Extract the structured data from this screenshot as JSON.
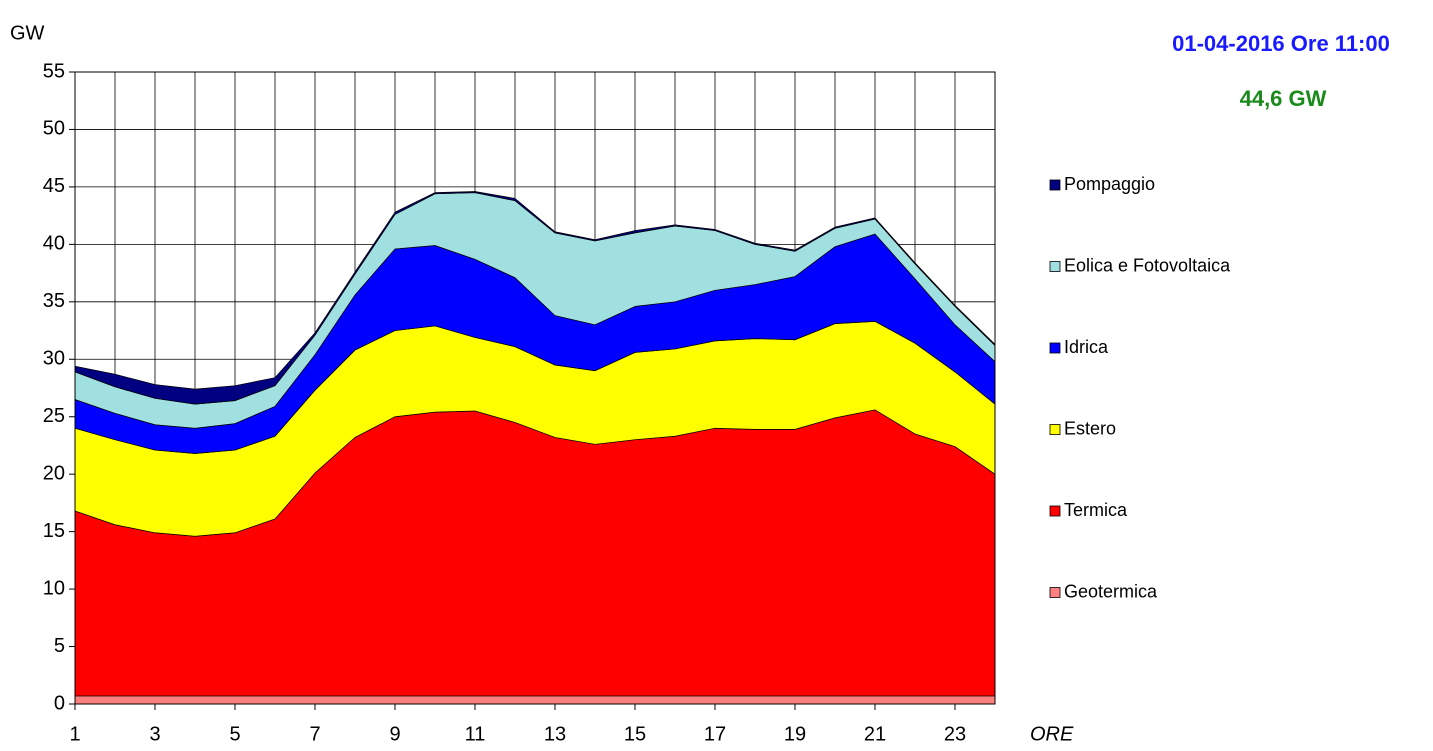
{
  "chart_data": {
    "type": "stacked_area",
    "title": "01-04-2016 Ore 11:00",
    "subtitle": "44,6 GW",
    "y_label": "GW",
    "x_label": "ORE",
    "x": [
      1,
      2,
      3,
      4,
      5,
      6,
      7,
      8,
      9,
      10,
      11,
      12,
      13,
      14,
      15,
      16,
      17,
      18,
      19,
      20,
      21,
      22,
      23,
      24
    ],
    "xlim": [
      1,
      24
    ],
    "xticks": [
      1,
      3,
      5,
      7,
      9,
      11,
      13,
      15,
      17,
      19,
      21,
      23
    ],
    "ylim": [
      0,
      55
    ],
    "yticks": [
      0,
      5,
      10,
      15,
      20,
      25,
      30,
      35,
      40,
      45,
      50,
      55
    ],
    "grid": true,
    "legend": "right",
    "series": [
      {
        "name": "Geotermica",
        "color": "#ff8080",
        "values": [
          0.7,
          0.7,
          0.7,
          0.7,
          0.7,
          0.7,
          0.7,
          0.7,
          0.7,
          0.7,
          0.7,
          0.7,
          0.7,
          0.7,
          0.7,
          0.7,
          0.7,
          0.7,
          0.7,
          0.7,
          0.7,
          0.7,
          0.7,
          0.7
        ]
      },
      {
        "name": "Termica",
        "color": "#ff0000",
        "values": [
          16.1,
          14.9,
          14.2,
          13.9,
          14.2,
          15.4,
          19.4,
          22.5,
          24.3,
          24.7,
          24.8,
          23.8,
          22.5,
          21.9,
          22.3,
          22.6,
          23.3,
          23.2,
          23.2,
          24.2,
          24.9,
          22.8,
          21.7,
          19.3
        ]
      },
      {
        "name": "Estero",
        "color": "#ffff00",
        "values": [
          7.2,
          7.4,
          7.2,
          7.2,
          7.2,
          7.2,
          7.2,
          7.6,
          7.5,
          7.5,
          6.4,
          6.6,
          6.3,
          6.4,
          7.6,
          7.6,
          7.6,
          7.9,
          7.8,
          8.2,
          7.7,
          7.9,
          6.5,
          6.1
        ]
      },
      {
        "name": "Idrica",
        "color": "#0000ff",
        "values": [
          2.5,
          2.3,
          2.2,
          2.2,
          2.3,
          2.6,
          3.1,
          4.8,
          7.1,
          7.0,
          6.8,
          6.0,
          4.3,
          4.0,
          4.0,
          4.1,
          4.4,
          4.7,
          5.5,
          6.7,
          7.6,
          5.6,
          4.1,
          3.7
        ]
      },
      {
        "name": "Eolica e Fotovoltaica",
        "color": "#a0e0e0",
        "values": [
          2.4,
          2.3,
          2.3,
          2.1,
          2.0,
          1.8,
          1.7,
          1.8,
          3.0,
          4.5,
          5.8,
          6.7,
          7.2,
          7.3,
          6.4,
          6.6,
          5.2,
          3.5,
          2.2,
          1.6,
          1.3,
          1.3,
          1.6,
          1.4
        ]
      },
      {
        "name": "Pompaggio",
        "color": "#000080",
        "values": [
          0.5,
          1.1,
          1.2,
          1.3,
          1.3,
          0.7,
          0.2,
          0.2,
          0.2,
          0.1,
          0.1,
          0.2,
          0.1,
          0.1,
          0.2,
          0.1,
          0.1,
          0.1,
          0.1,
          0.1,
          0.1,
          0.1,
          0.1,
          0.1
        ]
      }
    ]
  }
}
